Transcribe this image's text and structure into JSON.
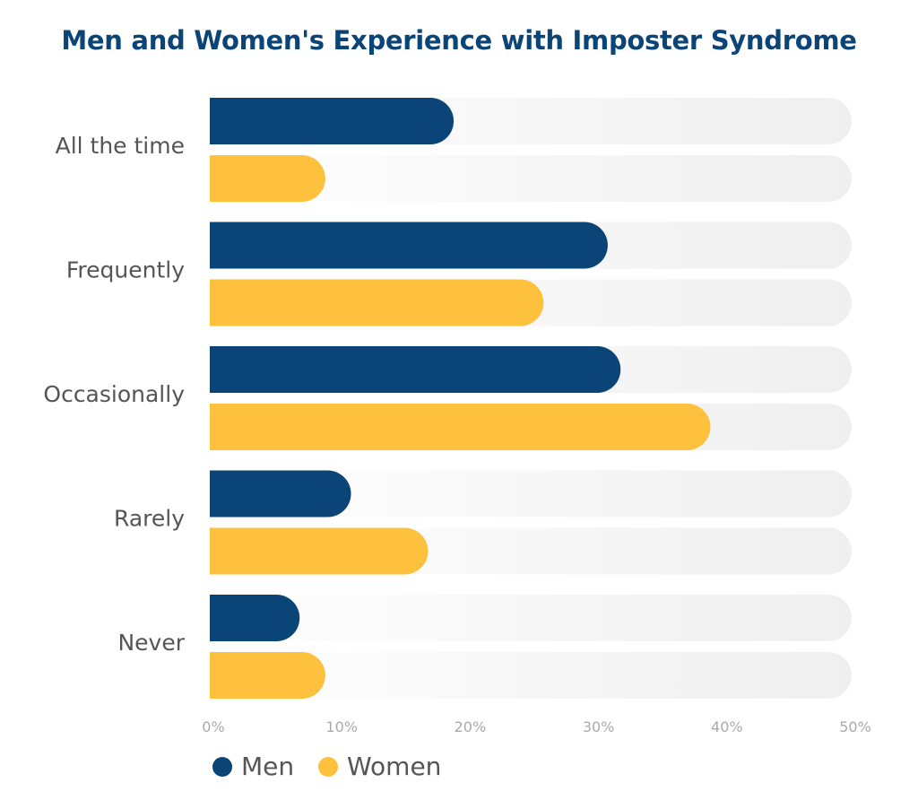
{
  "chart_data": {
    "type": "bar",
    "orientation": "horizontal",
    "title": "Men and Women's Experience with Imposter Syndrome",
    "categories": [
      "All the time",
      "Frequently",
      "Occasionally",
      "Rarely",
      "Never"
    ],
    "series": [
      {
        "name": "Men",
        "color": "#0b4477",
        "values": [
          19,
          31,
          32,
          11,
          7
        ]
      },
      {
        "name": "Women",
        "color": "#fdc13e",
        "values": [
          9,
          26,
          39,
          17,
          9
        ]
      }
    ],
    "xlim": [
      0,
      50
    ],
    "ticks": [
      "0%",
      "10%",
      "20%",
      "30%",
      "40%",
      "50%"
    ],
    "tick_values": [
      0,
      10,
      20,
      30,
      40,
      50
    ],
    "xlabel": "",
    "ylabel": "",
    "grid": false,
    "legend": "bottom-left",
    "track_color": "#f2f2f2"
  }
}
